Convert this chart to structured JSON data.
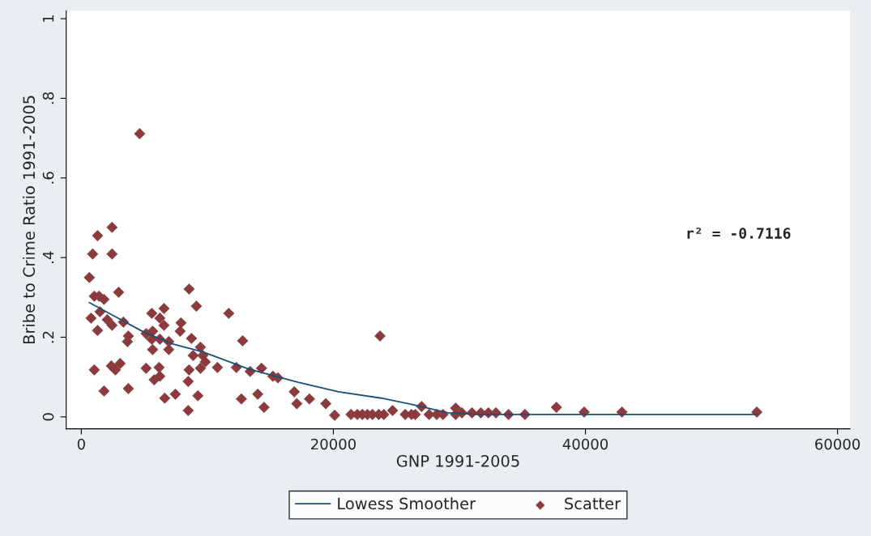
{
  "chart_data": {
    "type": "scatter",
    "xlabel": "GNP 1991-2005",
    "ylabel": "Bribe to Crime Ratio 1991-2005",
    "annotations": [
      "r² = -0.7116"
    ],
    "xlim": [
      -1200,
      61000
    ],
    "ylim": [
      -0.03,
      1.02
    ],
    "xticks": [
      0,
      20000,
      40000,
      60000
    ],
    "yticks": [
      {
        "value": 0,
        "label": "0"
      },
      {
        "value": 0.2,
        "label": ".2"
      },
      {
        "value": 0.4,
        "label": ".4"
      },
      {
        "value": 0.6,
        "label": ".6"
      },
      {
        "value": 0.8,
        "label": ".8"
      },
      {
        "value": 1,
        "label": "1"
      }
    ],
    "grid": false,
    "legend": "bottom",
    "series": [
      {
        "name": "Lowess Smoother",
        "type": "line",
        "color": "#1a4f7a",
        "marker": "none",
        "line_style": "solid",
        "x": [
          640,
          2570,
          4950,
          7260,
          9640,
          13300,
          17200,
          20400,
          23800,
          26400,
          29100,
          31300,
          53700
        ],
        "values": [
          0.287,
          0.254,
          0.213,
          0.183,
          0.163,
          0.12,
          0.087,
          0.063,
          0.047,
          0.03,
          0.01,
          0.006,
          0.006
        ]
      },
      {
        "name": "Scatter",
        "color": "#8b3a3e",
        "marker": "diamond",
        "x": [
          4630,
          2440,
          1290,
          900,
          2440,
          640,
          1030,
          1410,
          1800,
          2960,
          8550,
          9130,
          11700,
          770,
          1480,
          2060,
          2440,
          3340,
          1290,
          5590,
          6560,
          6230,
          6560,
          7910,
          7840,
          3730,
          3660,
          5140,
          5660,
          5590,
          6230,
          5660,
          6940,
          6940,
          8740,
          9450,
          9640,
          8870,
          9830,
          9450,
          10800,
          12300,
          12800,
          13400,
          1030,
          2380,
          2700,
          3080,
          5140,
          6170,
          5780,
          6230,
          1800,
          3730,
          8480,
          8550,
          6620,
          7460,
          9250,
          8480,
          12700,
          14300,
          15200,
          15600,
          16900,
          17100,
          18100,
          19400,
          20100,
          14000,
          14500,
          21400,
          21900,
          22300,
          22700,
          23100,
          23600,
          24000,
          23700,
          24700,
          25700,
          26200,
          26500,
          27000,
          27600,
          28200,
          28700,
          29700,
          29700,
          30200,
          31000,
          31700,
          32300,
          32900,
          33900,
          35200,
          37700,
          39900,
          42900,
          53600
        ],
        "values": [
          0.711,
          0.476,
          0.455,
          0.409,
          0.409,
          0.35,
          0.303,
          0.303,
          0.295,
          0.313,
          0.321,
          0.278,
          0.26,
          0.248,
          0.264,
          0.244,
          0.23,
          0.238,
          0.217,
          0.26,
          0.272,
          0.248,
          0.23,
          0.236,
          0.215,
          0.203,
          0.189,
          0.209,
          0.215,
          0.195,
          0.195,
          0.169,
          0.189,
          0.169,
          0.197,
          0.175,
          0.154,
          0.154,
          0.138,
          0.122,
          0.124,
          0.124,
          0.191,
          0.114,
          0.118,
          0.128,
          0.118,
          0.134,
          0.122,
          0.124,
          0.093,
          0.102,
          0.065,
          0.071,
          0.089,
          0.118,
          0.047,
          0.057,
          0.053,
          0.016,
          0.045,
          0.122,
          0.102,
          0.098,
          0.063,
          0.033,
          0.045,
          0.033,
          0.004,
          0.057,
          0.024,
          0.006,
          0.006,
          0.006,
          0.006,
          0.006,
          0.006,
          0.006,
          0.203,
          0.016,
          0.006,
          0.006,
          0.006,
          0.026,
          0.006,
          0.006,
          0.006,
          0.022,
          0.006,
          0.01,
          0.01,
          0.01,
          0.01,
          0.01,
          0.006,
          0.006,
          0.024,
          0.012,
          0.012,
          0.012
        ]
      }
    ]
  }
}
